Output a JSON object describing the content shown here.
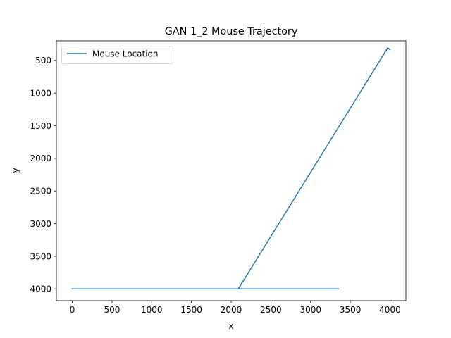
{
  "chart_data": {
    "type": "line",
    "title": "GAN 1_2 Mouse Trajectory",
    "xlabel": "x",
    "ylabel": "y",
    "xlim": [
      -200,
      4200
    ],
    "ylim": [
      4180,
      200
    ],
    "y_inverted": true,
    "xticks": [
      0,
      500,
      1000,
      1500,
      2000,
      2500,
      3000,
      3500,
      4000
    ],
    "yticks": [
      500,
      1000,
      1500,
      2000,
      2500,
      3000,
      3500,
      4000
    ],
    "grid": false,
    "legend_position": "upper left",
    "series": [
      {
        "name": "Mouse Location",
        "color": "#1f77b4",
        "points": [
          [
            0,
            4000
          ],
          [
            850,
            4000
          ],
          [
            0,
            4000
          ],
          [
            2090,
            4000
          ],
          [
            3350,
            4000
          ],
          [
            2090,
            4000
          ],
          [
            3970,
            310
          ],
          [
            4000,
            330
          ]
        ]
      }
    ]
  }
}
